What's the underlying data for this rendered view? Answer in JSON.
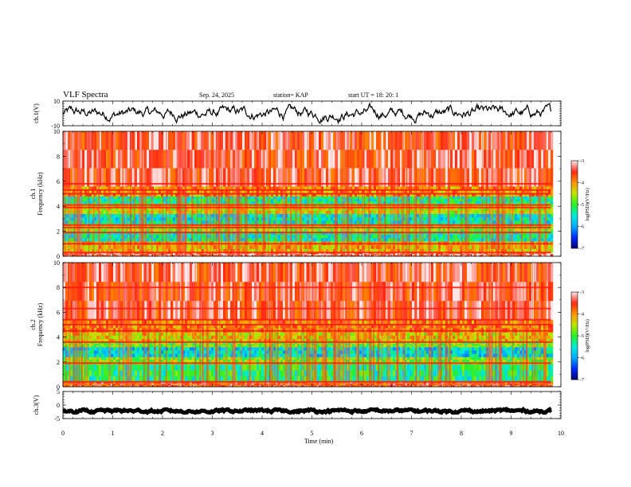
{
  "header": {
    "title": "VLF Spectra",
    "date": "Sep. 24, 2025",
    "station": "station= KAP",
    "start": "start  UT  =   18: 20: 1"
  },
  "colors": {
    "spec_red": "#ff1a10",
    "spec_orange": "#ff7a10",
    "spec_yellow": "#d8e000",
    "spec_green": "#22f020",
    "spec_cyan": "#00e0e0",
    "spec_blue": "#0050ff",
    "axis": "#000000"
  },
  "chart_data": [
    {
      "type": "line",
      "name": "ch1-waveform",
      "ylabel": "ch.1(V)",
      "ylim": [
        -10,
        10
      ],
      "yticks": [
        "10",
        "-10"
      ],
      "xlim": [
        0,
        10
      ],
      "mean": 0,
      "amplitude_range": [
        -8,
        8
      ],
      "data_end_min": 9.8
    },
    {
      "type": "heatmap",
      "name": "ch1-spectrogram",
      "ylabel": "ch.1\nFrequency  (kHz)",
      "ylim": [
        0,
        10
      ],
      "yticks": [
        "0",
        "2",
        "4",
        "6",
        "8",
        "10"
      ],
      "xlim": [
        0,
        10
      ],
      "data_end_min": 9.8,
      "colorbar": {
        "label": "log(PSD)(V²/Hz)",
        "range": [
          -7,
          -3
        ],
        "ticks": [
          "-3",
          "-4",
          "-5",
          "-6",
          "-7"
        ]
      },
      "bands_kHz": [
        {
          "from": 0.0,
          "to": 0.3,
          "level": -3.3
        },
        {
          "from": 0.3,
          "to": 1.2,
          "level": -4.2
        },
        {
          "from": 1.2,
          "to": 2.0,
          "level": -5.4
        },
        {
          "from": 2.0,
          "to": 2.6,
          "level": -4.6
        },
        {
          "from": 2.6,
          "to": 3.4,
          "level": -5.5
        },
        {
          "from": 3.4,
          "to": 4.2,
          "level": -4.4
        },
        {
          "from": 4.2,
          "to": 4.8,
          "level": -5.3
        },
        {
          "from": 4.8,
          "to": 5.6,
          "level": -4.0
        },
        {
          "from": 5.6,
          "to": 10.0,
          "level": -3.4
        }
      ],
      "lines_kHz": [
        0.3,
        1.0,
        1.9,
        2.3,
        2.5,
        3.9,
        4.1,
        5.0,
        5.3,
        5.8
      ]
    },
    {
      "type": "heatmap",
      "name": "ch2-spectrogram",
      "ylabel": "ch.2\nFrequency  (kHz)",
      "ylim": [
        0,
        10
      ],
      "yticks": [
        "0",
        "2",
        "4",
        "6",
        "8",
        "10"
      ],
      "xlim": [
        0,
        10
      ],
      "data_end_min": 9.8,
      "colorbar": {
        "label": "log(PSD)(V²/Hz)",
        "range": [
          -7,
          -3
        ],
        "ticks": [
          "-3",
          "-4",
          "-5",
          "-6",
          "-7"
        ]
      },
      "bands_kHz": [
        {
          "from": 0.0,
          "to": 0.4,
          "level": -3.6
        },
        {
          "from": 0.4,
          "to": 1.8,
          "level": -5.2
        },
        {
          "from": 1.8,
          "to": 2.4,
          "level": -4.7
        },
        {
          "from": 2.4,
          "to": 3.2,
          "level": -5.6
        },
        {
          "from": 3.2,
          "to": 3.6,
          "level": -4.8
        },
        {
          "from": 3.6,
          "to": 4.4,
          "level": -4.3
        },
        {
          "from": 4.4,
          "to": 5.4,
          "level": -3.9
        },
        {
          "from": 5.4,
          "to": 10.0,
          "level": -3.4
        }
      ],
      "lines_kHz": [
        0.4,
        1.9,
        3.6,
        4.5,
        5.0,
        5.4,
        6.3,
        8.0
      ]
    },
    {
      "type": "line",
      "name": "ch3-waveform",
      "ylabel": "ch.3(V)",
      "ylim": [
        -5,
        5
      ],
      "yticks": [
        "5",
        "0",
        "-5"
      ],
      "xlim": [
        0,
        10
      ],
      "mean": -2.2,
      "amplitude_range": [
        -2.8,
        -1.6
      ],
      "data_end_min": 9.8
    }
  ],
  "xaxis": {
    "label": "Time  (min)",
    "ticks": [
      "0",
      "1",
      "2",
      "3",
      "4",
      "5",
      "6",
      "7",
      "8",
      "9",
      "10"
    ]
  }
}
